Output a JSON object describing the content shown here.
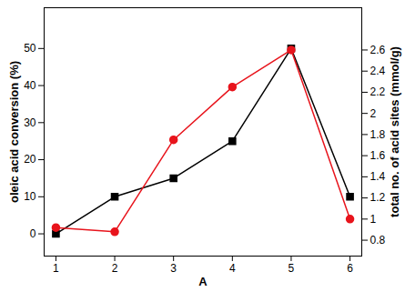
{
  "chart_data": {
    "type": "line",
    "x_label": "A",
    "y_label": "oleic acid conversion (%)",
    "y2_label": "total no. of acid sites (mmol/g)",
    "x": [
      1,
      2,
      3,
      4,
      5,
      6
    ],
    "xlim": [
      0.8,
      6.2
    ],
    "xticks": [
      1,
      2,
      3,
      4,
      5,
      6
    ],
    "ylim": [
      -6,
      61
    ],
    "yticks": [
      0,
      10,
      20,
      30,
      40,
      50
    ],
    "y2lim": [
      0.65,
      3.0
    ],
    "y2ticks": [
      0.8,
      1,
      1.2,
      1.4,
      1.6,
      1.8,
      2,
      2.2,
      2.4,
      2.6
    ],
    "series": [
      {
        "color": "#000000",
        "marker": "square",
        "values": [
          0,
          10,
          15,
          25,
          50,
          10
        ]
      },
      {
        "color": "#e8141c",
        "marker": "circle",
        "axis": "y2",
        "values": [
          0.92,
          0.88,
          1.75,
          2.25,
          2.6,
          1.0
        ]
      }
    ]
  }
}
